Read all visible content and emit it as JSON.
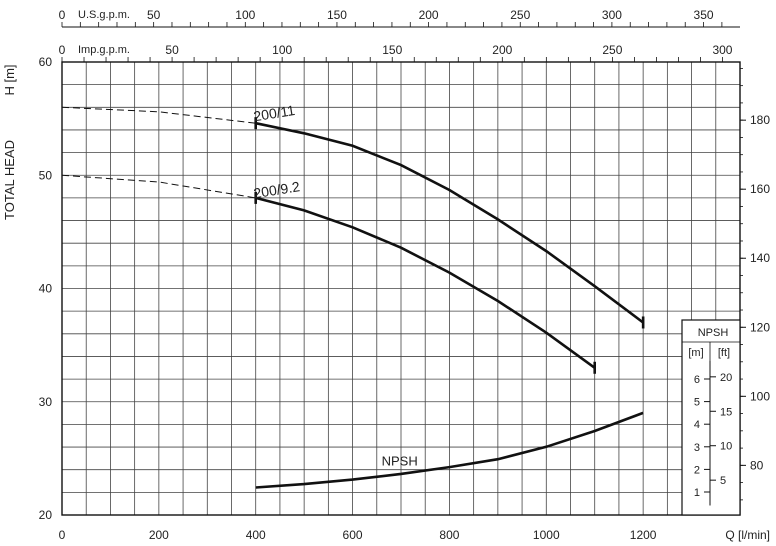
{
  "chart_data": {
    "type": "line",
    "xlabel": "Q [l/min]",
    "ylabel_main": "TOTAL HEAD",
    "ylabel_unit": "H [m]",
    "xlim": [
      0,
      1400
    ],
    "ylim": [
      20,
      60
    ],
    "x_ticks": [
      "0",
      "200",
      "400",
      "600",
      "800",
      "1000",
      "1200"
    ],
    "y_ticks": [
      "20",
      "30",
      "40",
      "50",
      "60"
    ],
    "y_ft_ticks": [
      "80",
      "100",
      "120",
      "140",
      "160",
      "180"
    ],
    "usgpm": {
      "label": "U.S.g.p.m.",
      "ticks": [
        "0",
        "50",
        "100",
        "150",
        "200",
        "250",
        "300",
        "350"
      ]
    },
    "impgpm": {
      "label": "Imp.g.p.m.",
      "ticks": [
        "0",
        "50",
        "100",
        "150",
        "200",
        "250",
        "300"
      ]
    },
    "series": [
      {
        "name": "200/11",
        "x": [
          0,
          200,
          400,
          500,
          600,
          700,
          800,
          900,
          1000,
          1100,
          1200
        ],
        "y": [
          56,
          55.6,
          54.6,
          53.7,
          52.6,
          50.9,
          48.7,
          46.1,
          43.3,
          40.2,
          37
        ]
      },
      {
        "name": "200/9.2",
        "x": [
          0,
          200,
          400,
          500,
          600,
          700,
          800,
          900,
          1000,
          1100
        ],
        "y": [
          50,
          49.4,
          48,
          46.9,
          45.4,
          43.6,
          41.4,
          38.9,
          36.1,
          33
        ]
      },
      {
        "name": "NPSH",
        "x": [
          400,
          500,
          600,
          700,
          800,
          900,
          1000,
          1100,
          1200
        ],
        "y": [
          1.2,
          1.35,
          1.55,
          1.8,
          2.1,
          2.45,
          3.0,
          3.7,
          4.5
        ]
      }
    ],
    "npsh_axis": {
      "title": "NPSH",
      "unit_m": "[m]",
      "unit_ft": "[ft]",
      "m_ticks": [
        "1",
        "2",
        "3",
        "4",
        "5",
        "6"
      ],
      "ft_ticks": [
        "5",
        "10",
        "15",
        "20"
      ]
    },
    "grid": true
  }
}
